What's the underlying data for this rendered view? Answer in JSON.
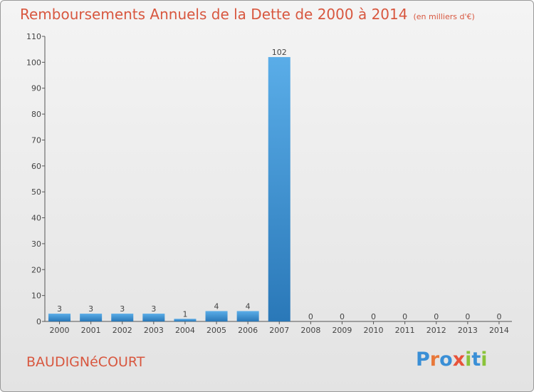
{
  "chart_data": {
    "type": "bar",
    "title": "Remboursements Annuels de la Dette de 2000 à 2014",
    "unit_note": "(en milliers d'€)",
    "categories": [
      "2000",
      "2001",
      "2002",
      "2003",
      "2004",
      "2005",
      "2006",
      "2007",
      "2008",
      "2009",
      "2010",
      "2011",
      "2012",
      "2013",
      "2014"
    ],
    "values": [
      3,
      3,
      3,
      3,
      1,
      4,
      4,
      102,
      0,
      0,
      0,
      0,
      0,
      0,
      0
    ],
    "ylim": [
      0,
      110
    ],
    "yticks": [
      0,
      10,
      20,
      30,
      40,
      50,
      60,
      70,
      80,
      90,
      100,
      110
    ],
    "xlabel": "",
    "ylabel": "",
    "bar_color": "#3f93d6"
  },
  "commune": "BAUDIGNéCOURT",
  "logo": {
    "text": "Proxiti",
    "letters": [
      {
        "ch": "P",
        "color": "#3a8fd6"
      },
      {
        "ch": "r",
        "color": "#e8783a"
      },
      {
        "ch": "o",
        "color": "#3a8fd6"
      },
      {
        "ch": "x",
        "color": "#e8533a"
      },
      {
        "ch": "i",
        "color": "#8ac33a"
      },
      {
        "ch": "t",
        "color": "#3a8fd6"
      },
      {
        "ch": "i",
        "color": "#8ac33a"
      }
    ]
  }
}
